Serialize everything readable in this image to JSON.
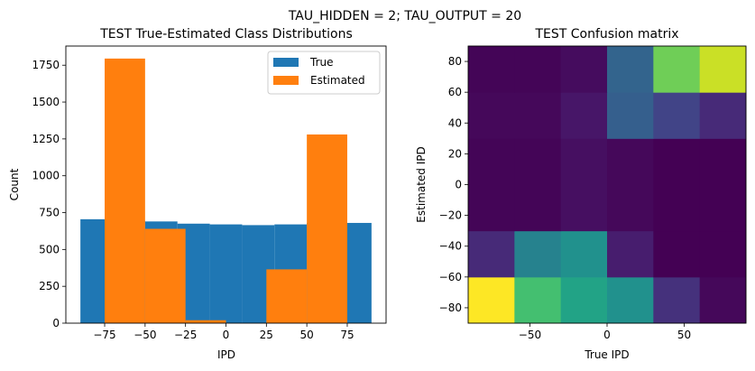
{
  "suptitle": "TAU_HIDDEN = 2; TAU_OUTPUT = 20",
  "chart_data": [
    {
      "type": "bar",
      "title": "TEST True-Estimated Class Distributions",
      "xlabel": "IPD",
      "ylabel": "Count",
      "xlim": [
        -99,
        99
      ],
      "ylim": [
        0,
        1880
      ],
      "xticks": [
        -75,
        -50,
        -25,
        0,
        25,
        50,
        75
      ],
      "xtick_labels": [
        "−75",
        "−50",
        "−25",
        "0",
        "25",
        "50",
        "75"
      ],
      "yticks": [
        0,
        250,
        500,
        750,
        1000,
        1250,
        1500,
        1750
      ],
      "ytick_labels": [
        "0",
        "250",
        "500",
        "750",
        "1000",
        "1250",
        "1500",
        "1750"
      ],
      "legend_position": "top-right",
      "series": [
        {
          "name": "True",
          "color": "#1f77b4",
          "bin_edges": [
            -90,
            -75,
            -50,
            -30,
            -10,
            10,
            30,
            50,
            75,
            90
          ],
          "values": [
            705,
            695,
            690,
            675,
            670,
            665,
            670,
            680,
            680
          ]
        },
        {
          "name": "Estimated",
          "color": "#ff7f0e",
          "bin_edges": [
            -75,
            -50,
            -25,
            0,
            25,
            50,
            75
          ],
          "values": [
            1795,
            640,
            20,
            0,
            365,
            1280
          ]
        }
      ]
    },
    {
      "type": "heatmap",
      "title": "TEST Confusion matrix",
      "xlabel": "True IPD",
      "ylabel": "Estimated IPD",
      "xlim": [
        -90,
        90
      ],
      "ylim": [
        -90,
        90
      ],
      "xticks": [
        -50,
        0,
        50
      ],
      "xtick_labels": [
        "−50",
        "0",
        "50"
      ],
      "yticks": [
        -80,
        -60,
        -40,
        -20,
        0,
        20,
        40,
        60,
        80
      ],
      "ytick_labels": [
        "−80",
        "−60",
        "−40",
        "−20",
        "0",
        "20",
        "40",
        "60",
        "80"
      ],
      "colormap": "viridis",
      "x_bin_edges": [
        -90,
        -60,
        -30,
        0,
        30,
        60,
        90
      ],
      "y_bin_edges": [
        -90,
        -60,
        -30,
        30,
        60,
        90
      ],
      "cells_from_bottom_row": [
        [
          1.0,
          0.7,
          0.58,
          0.5,
          0.14,
          0.02
        ],
        [
          0.12,
          0.44,
          0.5,
          0.08,
          0.0,
          0.0
        ],
        [
          0.01,
          0.01,
          0.04,
          0.02,
          0.0,
          0.0
        ],
        [
          0.02,
          0.02,
          0.06,
          0.3,
          0.2,
          0.12
        ],
        [
          0.01,
          0.01,
          0.03,
          0.32,
          0.78,
          0.92
        ]
      ]
    }
  ]
}
